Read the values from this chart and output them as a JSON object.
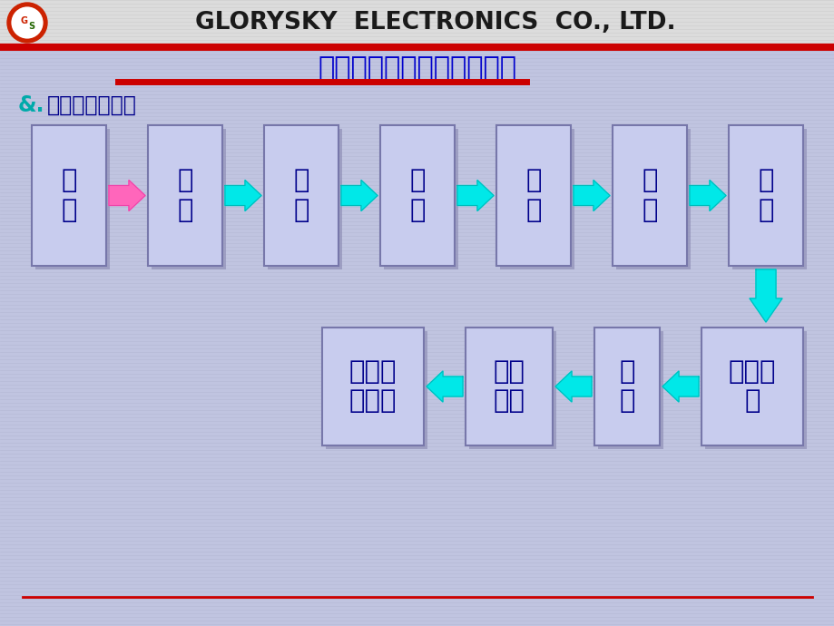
{
  "bg_color": "#c0c4e0",
  "header_bg": "#f0f0f0",
  "title_text": "第二部分：切片的制作程序",
  "title_color": "#0000cc",
  "subtitle_amp": "&.",
  "subtitle_rest": "切片制作流程：",
  "subtitle_color": "#00008b",
  "company_text": "GLORYSKY  ELECTRONICS  CO., LTD.",
  "company_color": "#1a1a1a",
  "red_line_color": "#cc0000",
  "dark_red_bar": "#cc0000",
  "box_fill": "#c8ccee",
  "box_edge_color": "#7777aa",
  "shadow_color": "#9090b8",
  "arrow_cyan": "#00e8e8",
  "arrow_pink": "#ff66bb",
  "text_color": "#00008b",
  "stripe_color": "#b0b4d0",
  "row1_labels": [
    "取\n樣",
    "封\n膈",
    "研\n磨",
    "拋\n光",
    "微\n蝕",
    "拍\n照",
    "量\n測"
  ],
  "row2_labels": [
    "提供書\n面報表",
    "書面\n存檔",
    "判\n定",
    "填寫報\n表"
  ],
  "footer_line_color": "#cc0000",
  "logo_red": "#cc2200",
  "logo_green": "#226600",
  "logo_text_color": "#cc2200"
}
